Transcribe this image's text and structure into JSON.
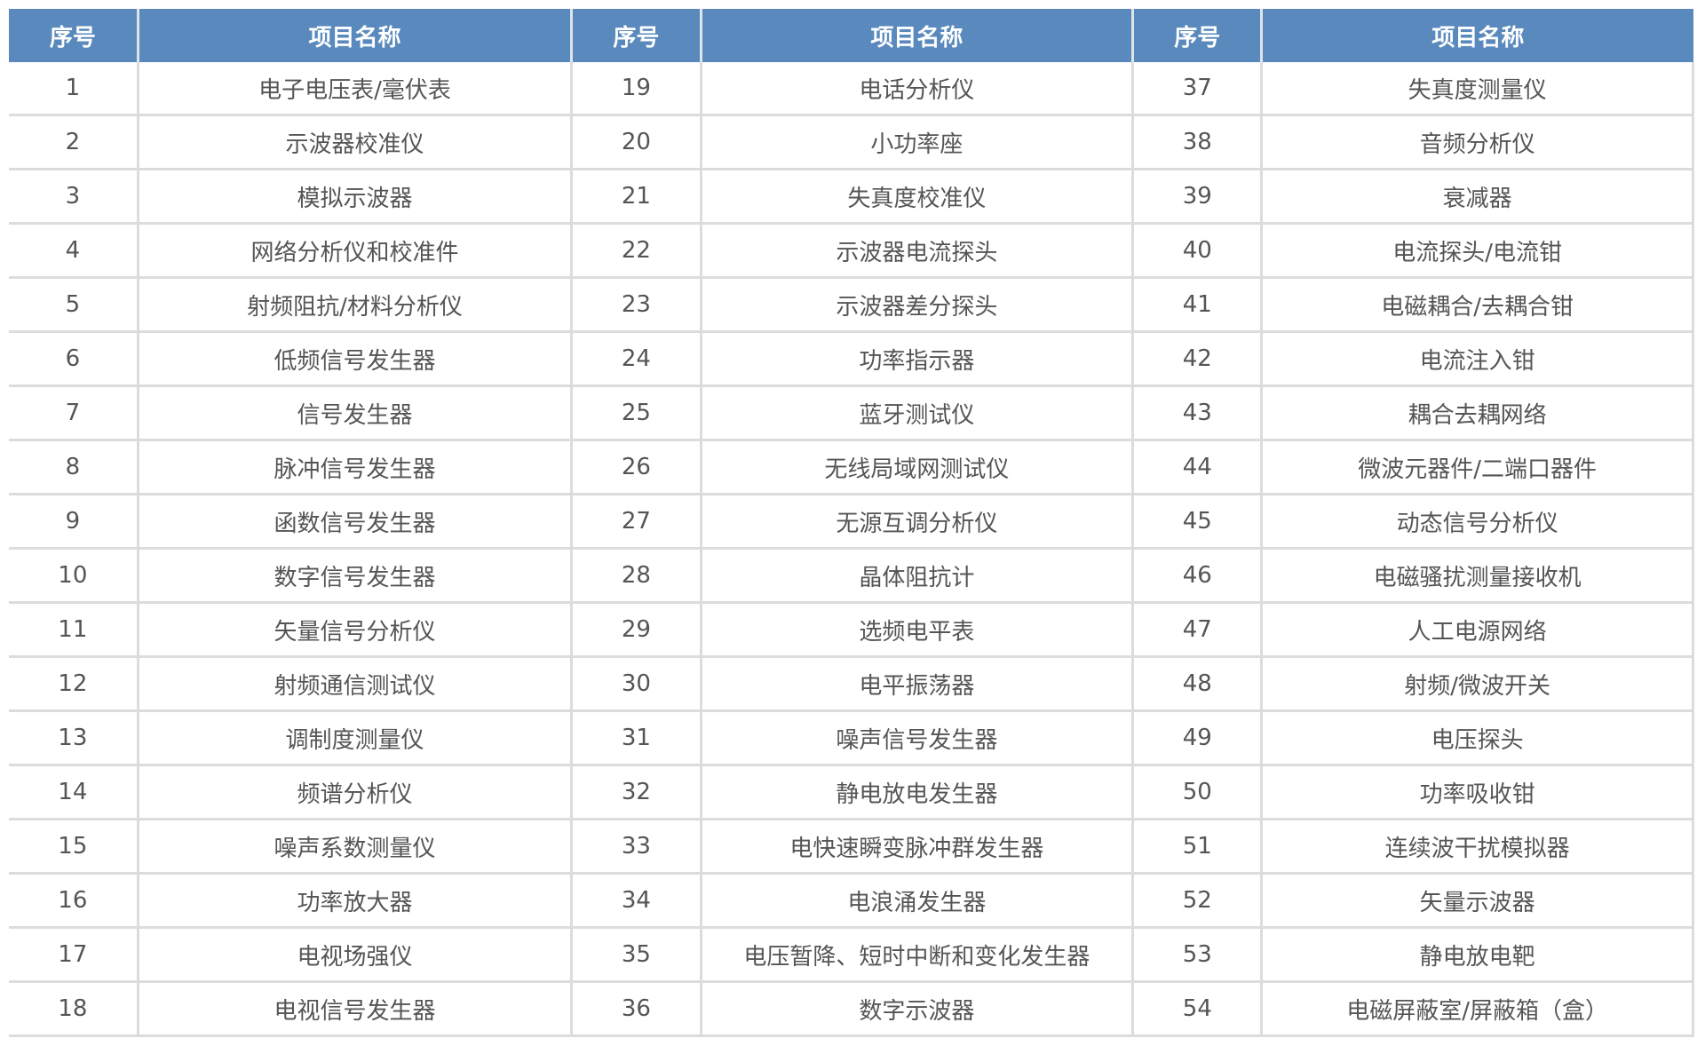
{
  "header": {
    "index": "序号",
    "name": "项目名称"
  },
  "colors": {
    "header_bg": "#5a8abd",
    "header_text": "#ffffff",
    "body_text": "#555555",
    "border": "#dcdcdc"
  },
  "rows": [
    [
      [
        "1",
        "电子电压表/毫伏表"
      ],
      [
        "19",
        "电话分析仪"
      ],
      [
        "37",
        "失真度测量仪"
      ]
    ],
    [
      [
        "2",
        "示波器校准仪"
      ],
      [
        "20",
        "小功率座"
      ],
      [
        "38",
        "音频分析仪"
      ]
    ],
    [
      [
        "3",
        "模拟示波器"
      ],
      [
        "21",
        "失真度校准仪"
      ],
      [
        "39",
        "衰减器"
      ]
    ],
    [
      [
        "4",
        "网络分析仪和校准件"
      ],
      [
        "22",
        "示波器电流探头"
      ],
      [
        "40",
        "电流探头/电流钳"
      ]
    ],
    [
      [
        "5",
        "射频阻抗/材料分析仪"
      ],
      [
        "23",
        "示波器差分探头"
      ],
      [
        "41",
        "电磁耦合/去耦合钳"
      ]
    ],
    [
      [
        "6",
        "低频信号发生器"
      ],
      [
        "24",
        "功率指示器"
      ],
      [
        "42",
        "电流注入钳"
      ]
    ],
    [
      [
        "7",
        "信号发生器"
      ],
      [
        "25",
        "蓝牙测试仪"
      ],
      [
        "43",
        "耦合去耦网络"
      ]
    ],
    [
      [
        "8",
        "脉冲信号发生器"
      ],
      [
        "26",
        "无线局域网测试仪"
      ],
      [
        "44",
        "微波元器件/二端口器件"
      ]
    ],
    [
      [
        "9",
        "函数信号发生器"
      ],
      [
        "27",
        "无源互调分析仪"
      ],
      [
        "45",
        "动态信号分析仪"
      ]
    ],
    [
      [
        "10",
        "数字信号发生器"
      ],
      [
        "28",
        "晶体阻抗计"
      ],
      [
        "46",
        "电磁骚扰测量接收机"
      ]
    ],
    [
      [
        "11",
        "矢量信号分析仪"
      ],
      [
        "29",
        "选频电平表"
      ],
      [
        "47",
        "人工电源网络"
      ]
    ],
    [
      [
        "12",
        "射频通信测试仪"
      ],
      [
        "30",
        "电平振荡器"
      ],
      [
        "48",
        "射频/微波开关"
      ]
    ],
    [
      [
        "13",
        "调制度测量仪"
      ],
      [
        "31",
        "噪声信号发生器"
      ],
      [
        "49",
        "电压探头"
      ]
    ],
    [
      [
        "14",
        "频谱分析仪"
      ],
      [
        "32",
        "静电放电发生器"
      ],
      [
        "50",
        "功率吸收钳"
      ]
    ],
    [
      [
        "15",
        "噪声系数测量仪"
      ],
      [
        "33",
        "电快速瞬变脉冲群发生器"
      ],
      [
        "51",
        "连续波干扰模拟器"
      ]
    ],
    [
      [
        "16",
        "功率放大器"
      ],
      [
        "34",
        "电浪涌发生器"
      ],
      [
        "52",
        "矢量示波器"
      ]
    ],
    [
      [
        "17",
        "电视场强仪"
      ],
      [
        "35",
        "电压暂降、短时中断和变化发生器"
      ],
      [
        "53",
        "静电放电靶"
      ]
    ],
    [
      [
        "18",
        "电视信号发生器"
      ],
      [
        "36",
        "数字示波器"
      ],
      [
        "54",
        "电磁屏蔽室/屏蔽箱（盒）"
      ]
    ]
  ]
}
